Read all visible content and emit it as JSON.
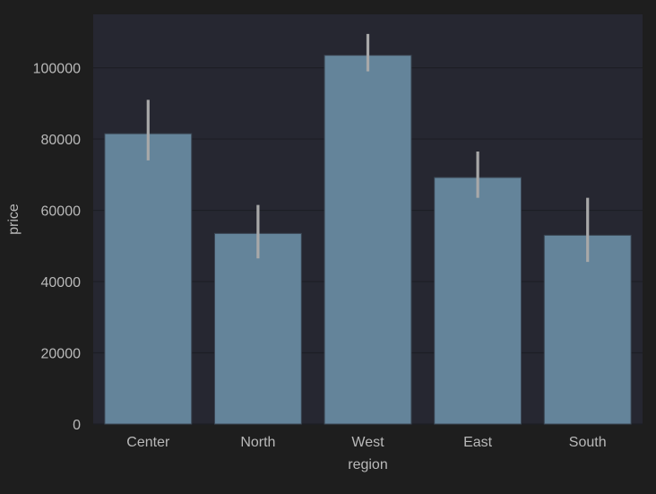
{
  "chart_data": {
    "type": "bar",
    "title": "",
    "xlabel": "region",
    "ylabel": "price",
    "categories": [
      "Center",
      "North",
      "West",
      "East",
      "South"
    ],
    "values": [
      81500,
      53500,
      103500,
      69200,
      53000
    ],
    "error_low": [
      74000,
      46500,
      99000,
      63500,
      45500
    ],
    "error_high": [
      91000,
      61500,
      109500,
      76500,
      63500
    ],
    "ylim": [
      0,
      115000
    ],
    "yticks": [
      0,
      20000,
      40000,
      60000,
      80000,
      100000
    ],
    "grid": true,
    "legend": "none",
    "colors": {
      "page_background": "#1e1e1e",
      "plot_background": "#262731",
      "bar_fill": "#64849a",
      "bar_edge": "#3a4552",
      "error_bar": "#a8a8a8",
      "grid": "#1d1e25",
      "text": "#b9b9b9"
    }
  }
}
